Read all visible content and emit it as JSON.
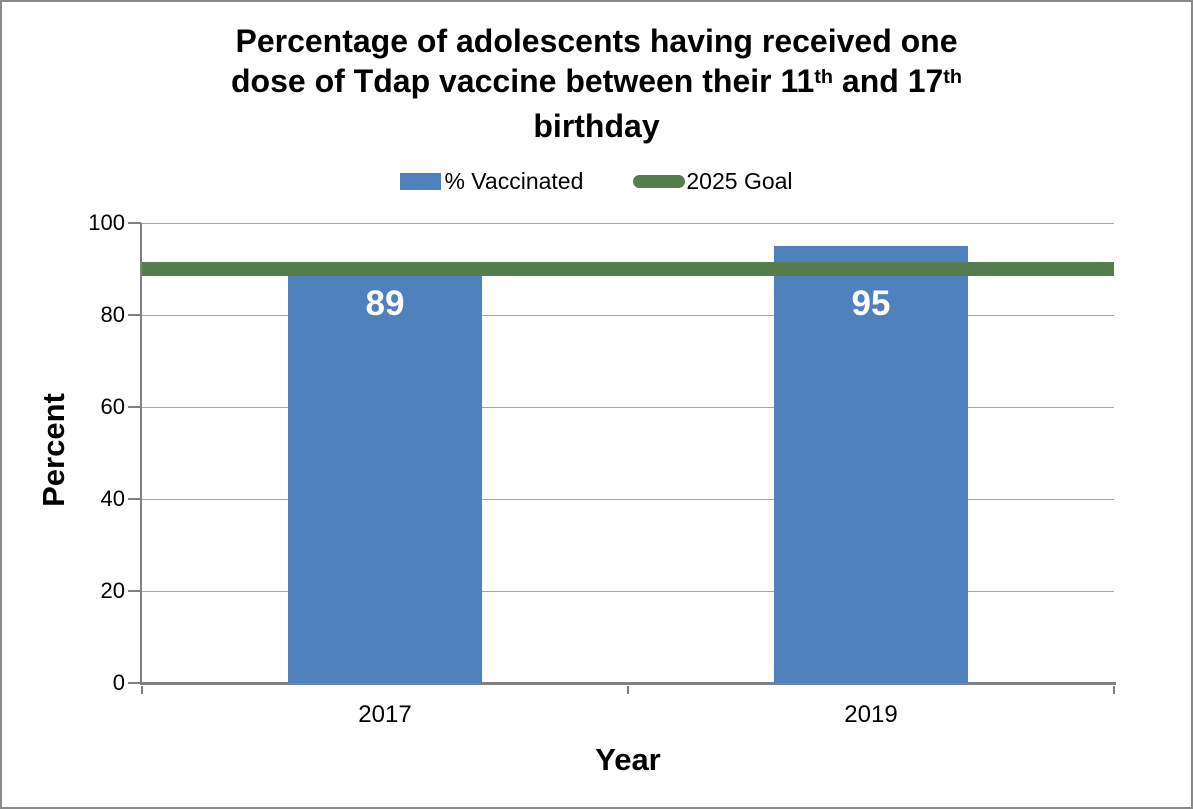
{
  "title": {
    "line1": "Percentage of adolescents having received one",
    "line2_pre": "dose of Tdap vaccine between their 11",
    "line2_sup1": "th",
    "line2_mid": " and 17",
    "line2_sup2": "th",
    "line3": "birthday"
  },
  "legend": {
    "items": [
      {
        "label": "% Vaccinated",
        "color": "#4F81BD",
        "shape": "rect"
      },
      {
        "label": "2025 Goal",
        "color": "#557D4E",
        "shape": "line"
      }
    ]
  },
  "chart_data": {
    "type": "bar",
    "title": "Percentage of adolescents having received one dose of Tdap vaccine between their 11th and 17th birthday",
    "categories": [
      "2017",
      "2019"
    ],
    "series": [
      {
        "name": "% Vaccinated",
        "type": "bar",
        "values": [
          89,
          95
        ],
        "color": "#4F81BD",
        "data_label_color": "#FFFFFF"
      },
      {
        "name": "2025 Goal",
        "type": "line",
        "value": 90,
        "color": "#557D4E"
      }
    ],
    "xlabel": "Year",
    "ylabel": "Percent",
    "ylim": [
      0,
      100
    ],
    "yticks": [
      0,
      20,
      40,
      60,
      80,
      100
    ],
    "grid": "horizontal-major",
    "legend_position": "top",
    "colors": {
      "axis": "#808080",
      "gridline": "#A6A6A6",
      "page_border": "#898989"
    }
  }
}
